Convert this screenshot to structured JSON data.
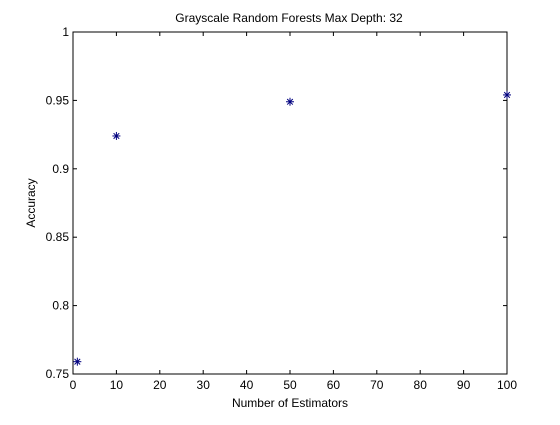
{
  "chart_data": {
    "type": "scatter",
    "title": "Grayscale Random Forests Max Depth: 32",
    "xlabel": "Number of Estimators",
    "ylabel": "Accuracy",
    "xlim": [
      0,
      100
    ],
    "ylim": [
      0.75,
      1
    ],
    "xticks": [
      0,
      10,
      20,
      30,
      40,
      50,
      60,
      70,
      80,
      90,
      100
    ],
    "yticks": [
      0.75,
      0.8,
      0.85,
      0.9,
      0.95,
      1
    ],
    "ytick_labels": [
      "0.75",
      "0.8",
      "0.85",
      "0.9",
      "0.95",
      "1"
    ],
    "grid": false,
    "legend": "none",
    "marker": "asterisk",
    "marker_color": "#00007f",
    "series": [
      {
        "x": [
          1,
          10,
          50,
          100
        ],
        "y": [
          0.759,
          0.924,
          0.949,
          0.954
        ]
      }
    ]
  }
}
